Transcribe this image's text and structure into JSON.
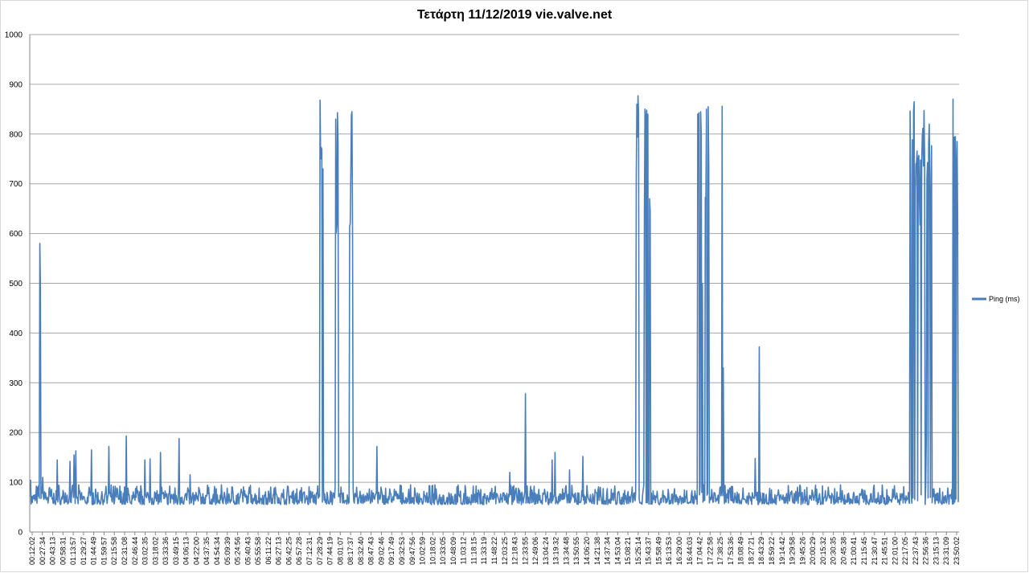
{
  "chart_data": {
    "type": "line",
    "title": "Τετάρτη 11/12/2019 vie.valve.net",
    "xlabel": "",
    "ylabel": "",
    "ylim": [
      0,
      1000
    ],
    "yticks": [
      0,
      100,
      200,
      300,
      400,
      500,
      600,
      700,
      800,
      900,
      1000
    ],
    "grid": true,
    "legend_position": "right",
    "series_color": "#4a7ebb",
    "categories": [
      "00:12:02",
      "00:27:34",
      "00:43:13",
      "00:58:31",
      "01:13:57",
      "01:29:27",
      "01:44:49",
      "01:59:57",
      "02:15:58",
      "02:31:08",
      "02:46:44",
      "03:02:35",
      "03:18:02",
      "03:33:36",
      "03:49:15",
      "04:06:13",
      "04:22:00",
      "04:37:35",
      "04:54:34",
      "05:09:39",
      "05:24:56",
      "05:40:43",
      "05:55:58",
      "06:11:22",
      "06:27:13",
      "06:42:25",
      "06:57:28",
      "07:12:31",
      "07:28:29",
      "07:44:19",
      "08:01:07",
      "08:17:37",
      "08:32:40",
      "08:47:43",
      "09:02:46",
      "09:17:49",
      "09:32:53",
      "09:47:56",
      "10:02:59",
      "10:18:02",
      "10:33:05",
      "10:48:09",
      "11:03:12",
      "11:18:15",
      "11:33:19",
      "11:48:22",
      "12:03:25",
      "12:18:43",
      "12:33:55",
      "12:49:06",
      "13:04:24",
      "13:19:32",
      "13:34:48",
      "13:50:55",
      "14:06:20",
      "14:21:38",
      "14:37:34",
      "14:53:04",
      "15:08:21",
      "15:25:14",
      "15:43:37",
      "15:58:49",
      "16:13:53",
      "16:29:00",
      "16:44:03",
      "17:04:42",
      "17:22:58",
      "17:38:25",
      "17:53:36",
      "18:08:49",
      "18:27:21",
      "18:43:29",
      "18:59:22",
      "19:14:42",
      "19:29:58",
      "19:45:26",
      "20:00:29",
      "20:15:32",
      "20:30:35",
      "20:45:38",
      "21:00:41",
      "21:15:45",
      "21:30:47",
      "21:45:51",
      "22:01:00",
      "22:17:05",
      "22:37:43",
      "22:56:36",
      "23:15:13",
      "23:31:09",
      "23:50:02"
    ],
    "series": [
      {
        "name": "Ping (ms)",
        "baseline_range": [
          55,
          95
        ],
        "spikes": [
          {
            "x": 0.0,
            "y": 105
          },
          {
            "x": 0.9,
            "y": 580
          },
          {
            "x": 0.95,
            "y": 490
          },
          {
            "x": 1.2,
            "y": 110
          },
          {
            "x": 2.6,
            "y": 145
          },
          {
            "x": 3.8,
            "y": 142
          },
          {
            "x": 4.2,
            "y": 155
          },
          {
            "x": 4.4,
            "y": 163
          },
          {
            "x": 5.9,
            "y": 165
          },
          {
            "x": 7.6,
            "y": 172
          },
          {
            "x": 9.3,
            "y": 193
          },
          {
            "x": 11.1,
            "y": 145
          },
          {
            "x": 11.6,
            "y": 147
          },
          {
            "x": 12.6,
            "y": 160
          },
          {
            "x": 14.4,
            "y": 188
          },
          {
            "x": 15.5,
            "y": 115
          },
          {
            "x": 28.1,
            "y": 868
          },
          {
            "x": 28.25,
            "y": 770
          },
          {
            "x": 28.35,
            "y": 730
          },
          {
            "x": 29.6,
            "y": 830
          },
          {
            "x": 29.8,
            "y": 843
          },
          {
            "x": 31.0,
            "y": 620
          },
          {
            "x": 31.1,
            "y": 838
          },
          {
            "x": 31.2,
            "y": 845
          },
          {
            "x": 33.6,
            "y": 172
          },
          {
            "x": 46.5,
            "y": 120
          },
          {
            "x": 48.0,
            "y": 278
          },
          {
            "x": 50.6,
            "y": 145
          },
          {
            "x": 50.9,
            "y": 160
          },
          {
            "x": 52.3,
            "y": 125
          },
          {
            "x": 53.6,
            "y": 152
          },
          {
            "x": 58.8,
            "y": 860
          },
          {
            "x": 58.95,
            "y": 877
          },
          {
            "x": 59.6,
            "y": 850
          },
          {
            "x": 59.75,
            "y": 848
          },
          {
            "x": 59.9,
            "y": 840
          },
          {
            "x": 60.05,
            "y": 670
          },
          {
            "x": 64.7,
            "y": 840
          },
          {
            "x": 64.85,
            "y": 843
          },
          {
            "x": 65.0,
            "y": 845
          },
          {
            "x": 65.2,
            "y": 500
          },
          {
            "x": 65.6,
            "y": 850
          },
          {
            "x": 65.75,
            "y": 855
          },
          {
            "x": 67.1,
            "y": 856
          },
          {
            "x": 67.2,
            "y": 330
          },
          {
            "x": 70.3,
            "y": 148
          },
          {
            "x": 70.7,
            "y": 372
          },
          {
            "x": 85.4,
            "y": 720
          },
          {
            "x": 85.7,
            "y": 865
          },
          {
            "x": 85.9,
            "y": 740
          },
          {
            "x": 86.2,
            "y": 757
          },
          {
            "x": 86.5,
            "y": 795
          },
          {
            "x": 86.7,
            "y": 847
          },
          {
            "x": 86.9,
            "y": 195
          },
          {
            "x": 87.2,
            "y": 820
          },
          {
            "x": 87.35,
            "y": 650
          },
          {
            "x": 89.5,
            "y": 870
          },
          {
            "x": 89.7,
            "y": 795
          },
          {
            "x": 89.9,
            "y": 785
          },
          {
            "x": 90.1,
            "y": 750
          },
          {
            "x": 90.3,
            "y": 808
          },
          {
            "x": 90.5,
            "y": 590
          },
          {
            "x": 90.7,
            "y": 545
          },
          {
            "x": 91.0,
            "y": 135
          }
        ]
      }
    ]
  }
}
